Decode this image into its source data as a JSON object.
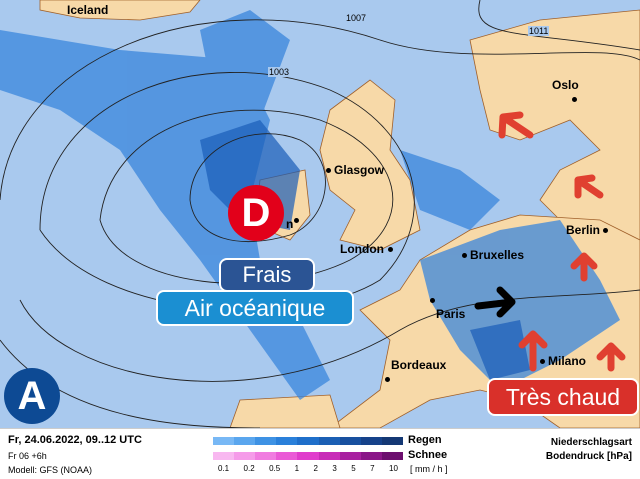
{
  "map": {
    "cities": [
      {
        "name": "Iceland",
        "dot": false
      },
      {
        "name": "Oslo",
        "dot": true
      },
      {
        "name": "Glasgow",
        "dot": true
      },
      {
        "name": "London",
        "dot": true
      },
      {
        "name": "Berlin",
        "dot": true
      },
      {
        "name": "Bruxelles",
        "dot": true
      },
      {
        "name": "Paris",
        "dot": true
      },
      {
        "name": "Bordeaux",
        "dot": true
      },
      {
        "name": "Milano",
        "dot": true
      },
      {
        "name": "n",
        "dot": true
      }
    ],
    "isobars": [
      "1007",
      "1003",
      "1011"
    ],
    "low_label": "D",
    "high_label": "A",
    "badges": {
      "frais": "Frais",
      "air": "Air océanique",
      "chaud": "Très chaud"
    },
    "colors": {
      "sea": "#a9c9ee",
      "land": "#f7d9a8",
      "low": "#e2001a",
      "high": "#0d4a94",
      "hot": "#d9302a",
      "frais": "#2b5494",
      "air": "#1b8fd2"
    }
  },
  "legend": {
    "date": "Fr, 24.06.2022, 09..12 UTC",
    "run": "Fr 06 +6h",
    "model": "Modell: GFS (NOAA)",
    "rain": "Regen",
    "snow": "Schnee",
    "unit": "[ mm / h ]",
    "ticks": [
      "0.1",
      "0.2",
      "0.5",
      "1",
      "2",
      "3",
      "5",
      "7",
      "10"
    ],
    "type_label": "Niederschlagsart",
    "pressure_label": "Bodendruck [hPa]",
    "rain_colors": [
      "#78b8f5",
      "#5aa6ee",
      "#3e92e4",
      "#2a80da",
      "#1f6fca",
      "#1b5fb4",
      "#18509f",
      "#16428a",
      "#143874"
    ],
    "snow_colors": [
      "#f8b8f0",
      "#f59be9",
      "#f07ce0",
      "#ea5ad6",
      "#e03ccc",
      "#c82cb8",
      "#a820a0",
      "#8a1688",
      "#6c0e6e"
    ]
  }
}
